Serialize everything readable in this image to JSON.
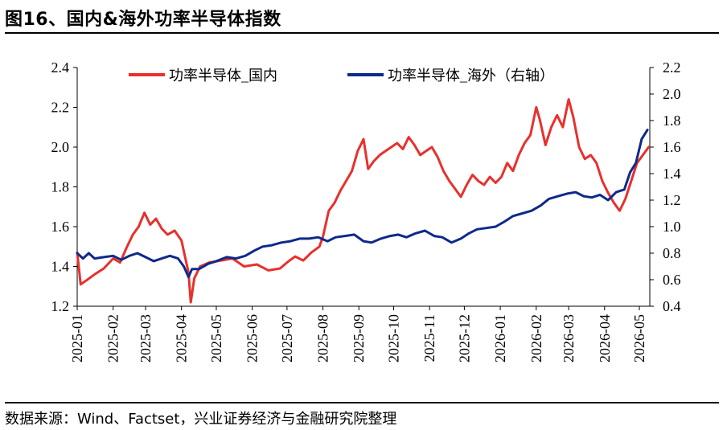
{
  "header": {
    "title": "图16、国内&海外功率半导体指数"
  },
  "footer": {
    "source": "数据来源：Wind、Factset，兴业证券经济与金融研究院整理"
  },
  "chart_data": {
    "type": "line",
    "title": "",
    "xlabel": "",
    "ylabel": "",
    "x_ticks": [
      "2025-01",
      "2025-02",
      "2025-03",
      "2025-04",
      "2025-05",
      "2025-06",
      "2025-07",
      "2025-08",
      "2025-09",
      "2025-10",
      "2025-11",
      "2025-12",
      "2026-01",
      "2026-02",
      "2026-03",
      "2026-04",
      "2026-05"
    ],
    "y_left": {
      "min": 1.2,
      "max": 2.4,
      "ticks": [
        "1.2",
        "1.4",
        "1.6",
        "1.8",
        "2.0",
        "2.2",
        "2.4"
      ]
    },
    "y_right": {
      "min": 0.4,
      "max": 2.2,
      "ticks": [
        "0.4",
        "0.6",
        "0.8",
        "1.0",
        "1.2",
        "1.4",
        "1.6",
        "1.8",
        "2.0",
        "2.2"
      ]
    },
    "legend_position": "top",
    "grid": false,
    "series": [
      {
        "name": "功率半导体_国内",
        "color": "#e8302c",
        "axis": "left",
        "points": [
          [
            "2025-01-01",
            1.47
          ],
          [
            "2025-01-04",
            1.31
          ],
          [
            "2025-01-09",
            1.33
          ],
          [
            "2025-01-16",
            1.36
          ],
          [
            "2025-01-24",
            1.39
          ],
          [
            "2025-02-01",
            1.44
          ],
          [
            "2025-02-07",
            1.42
          ],
          [
            "2025-02-13",
            1.5
          ],
          [
            "2025-02-18",
            1.56
          ],
          [
            "2025-02-23",
            1.6
          ],
          [
            "2025-02-28",
            1.67
          ],
          [
            "2025-03-05",
            1.61
          ],
          [
            "2025-03-10",
            1.64
          ],
          [
            "2025-03-15",
            1.59
          ],
          [
            "2025-03-20",
            1.56
          ],
          [
            "2025-03-26",
            1.58
          ],
          [
            "2025-04-01",
            1.53
          ],
          [
            "2025-04-04",
            1.45
          ],
          [
            "2025-04-07",
            1.37
          ],
          [
            "2025-04-09",
            1.22
          ],
          [
            "2025-04-12",
            1.34
          ],
          [
            "2025-04-17",
            1.4
          ],
          [
            "2025-04-25",
            1.42
          ],
          [
            "2025-05-05",
            1.43
          ],
          [
            "2025-05-15",
            1.44
          ],
          [
            "2025-05-25",
            1.4
          ],
          [
            "2025-06-05",
            1.41
          ],
          [
            "2025-06-15",
            1.38
          ],
          [
            "2025-06-25",
            1.39
          ],
          [
            "2025-07-01",
            1.42
          ],
          [
            "2025-07-08",
            1.45
          ],
          [
            "2025-07-15",
            1.43
          ],
          [
            "2025-07-22",
            1.47
          ],
          [
            "2025-07-29",
            1.5
          ],
          [
            "2025-08-01",
            1.55
          ],
          [
            "2025-08-06",
            1.68
          ],
          [
            "2025-08-11",
            1.72
          ],
          [
            "2025-08-16",
            1.78
          ],
          [
            "2025-08-21",
            1.83
          ],
          [
            "2025-08-26",
            1.88
          ],
          [
            "2025-08-31",
            1.98
          ],
          [
            "2025-09-05",
            2.04
          ],
          [
            "2025-09-09",
            1.89
          ],
          [
            "2025-09-14",
            1.93
          ],
          [
            "2025-09-19",
            1.96
          ],
          [
            "2025-09-24",
            1.98
          ],
          [
            "2025-09-29",
            2.0
          ],
          [
            "2025-10-04",
            2.02
          ],
          [
            "2025-10-09",
            1.99
          ],
          [
            "2025-10-14",
            2.05
          ],
          [
            "2025-10-19",
            2.01
          ],
          [
            "2025-10-24",
            1.96
          ],
          [
            "2025-10-29",
            1.98
          ],
          [
            "2025-11-03",
            2.0
          ],
          [
            "2025-11-08",
            1.95
          ],
          [
            "2025-11-13",
            1.88
          ],
          [
            "2025-11-18",
            1.83
          ],
          [
            "2025-11-23",
            1.79
          ],
          [
            "2025-11-28",
            1.75
          ],
          [
            "2025-12-03",
            1.81
          ],
          [
            "2025-12-08",
            1.86
          ],
          [
            "2025-12-13",
            1.83
          ],
          [
            "2025-12-18",
            1.81
          ],
          [
            "2025-12-23",
            1.85
          ],
          [
            "2025-12-28",
            1.82
          ],
          [
            "2026-01-02",
            1.85
          ],
          [
            "2026-01-07",
            1.92
          ],
          [
            "2026-01-12",
            1.88
          ],
          [
            "2026-01-17",
            1.96
          ],
          [
            "2026-01-22",
            2.02
          ],
          [
            "2026-01-27",
            2.06
          ],
          [
            "2026-02-01",
            2.2
          ],
          [
            "2026-02-04",
            2.14
          ],
          [
            "2026-02-09",
            2.01
          ],
          [
            "2026-02-14",
            2.1
          ],
          [
            "2026-02-19",
            2.16
          ],
          [
            "2026-02-24",
            2.1
          ],
          [
            "2026-03-01",
            2.24
          ],
          [
            "2026-03-05",
            2.15
          ],
          [
            "2026-03-10",
            2.0
          ],
          [
            "2026-03-15",
            1.94
          ],
          [
            "2026-03-20",
            1.96
          ],
          [
            "2026-03-25",
            1.92
          ],
          [
            "2026-03-30",
            1.83
          ],
          [
            "2026-04-04",
            1.77
          ],
          [
            "2026-04-09",
            1.72
          ],
          [
            "2026-04-14",
            1.68
          ],
          [
            "2026-04-19",
            1.74
          ],
          [
            "2026-04-24",
            1.83
          ],
          [
            "2026-04-29",
            1.92
          ],
          [
            "2026-05-04",
            1.96
          ],
          [
            "2026-05-09",
            2.0
          ]
        ]
      },
      {
        "name": "功率半导体_海外（右轴）",
        "color": "#0d2a8a",
        "axis": "right",
        "points": [
          [
            "2025-01-01",
            0.8
          ],
          [
            "2025-01-06",
            0.76
          ],
          [
            "2025-01-11",
            0.8
          ],
          [
            "2025-01-16",
            0.76
          ],
          [
            "2025-01-24",
            0.77
          ],
          [
            "2025-02-01",
            0.78
          ],
          [
            "2025-02-08",
            0.75
          ],
          [
            "2025-02-15",
            0.78
          ],
          [
            "2025-02-22",
            0.8
          ],
          [
            "2025-03-01",
            0.77
          ],
          [
            "2025-03-08",
            0.74
          ],
          [
            "2025-03-15",
            0.76
          ],
          [
            "2025-03-22",
            0.78
          ],
          [
            "2025-03-29",
            0.76
          ],
          [
            "2025-04-03",
            0.7
          ],
          [
            "2025-04-07",
            0.62
          ],
          [
            "2025-04-10",
            0.68
          ],
          [
            "2025-04-16",
            0.68
          ],
          [
            "2025-04-24",
            0.72
          ],
          [
            "2025-05-01",
            0.74
          ],
          [
            "2025-05-10",
            0.77
          ],
          [
            "2025-05-18",
            0.76
          ],
          [
            "2025-05-26",
            0.78
          ],
          [
            "2025-06-03",
            0.82
          ],
          [
            "2025-06-10",
            0.85
          ],
          [
            "2025-06-18",
            0.86
          ],
          [
            "2025-06-26",
            0.88
          ],
          [
            "2025-07-04",
            0.89
          ],
          [
            "2025-07-12",
            0.91
          ],
          [
            "2025-07-20",
            0.91
          ],
          [
            "2025-07-28",
            0.92
          ],
          [
            "2025-08-05",
            0.89
          ],
          [
            "2025-08-12",
            0.92
          ],
          [
            "2025-08-20",
            0.93
          ],
          [
            "2025-08-28",
            0.94
          ],
          [
            "2025-09-05",
            0.89
          ],
          [
            "2025-09-12",
            0.88
          ],
          [
            "2025-09-20",
            0.91
          ],
          [
            "2025-09-28",
            0.93
          ],
          [
            "2025-10-05",
            0.94
          ],
          [
            "2025-10-12",
            0.92
          ],
          [
            "2025-10-20",
            0.95
          ],
          [
            "2025-10-28",
            0.97
          ],
          [
            "2025-11-05",
            0.93
          ],
          [
            "2025-11-12",
            0.92
          ],
          [
            "2025-11-20",
            0.88
          ],
          [
            "2025-11-28",
            0.91
          ],
          [
            "2025-12-05",
            0.95
          ],
          [
            "2025-12-12",
            0.98
          ],
          [
            "2025-12-20",
            0.99
          ],
          [
            "2025-12-28",
            1.0
          ],
          [
            "2026-01-05",
            1.04
          ],
          [
            "2026-01-12",
            1.08
          ],
          [
            "2026-01-20",
            1.1
          ],
          [
            "2026-01-28",
            1.12
          ],
          [
            "2026-02-05",
            1.16
          ],
          [
            "2026-02-12",
            1.21
          ],
          [
            "2026-02-20",
            1.23
          ],
          [
            "2026-02-28",
            1.25
          ],
          [
            "2026-03-07",
            1.26
          ],
          [
            "2026-03-14",
            1.23
          ],
          [
            "2026-03-21",
            1.22
          ],
          [
            "2026-03-28",
            1.24
          ],
          [
            "2026-04-04",
            1.2
          ],
          [
            "2026-04-11",
            1.26
          ],
          [
            "2026-04-18",
            1.28
          ],
          [
            "2026-04-23",
            1.41
          ],
          [
            "2026-04-28",
            1.48
          ],
          [
            "2026-05-03",
            1.66
          ],
          [
            "2026-05-08",
            1.73
          ]
        ]
      }
    ]
  }
}
